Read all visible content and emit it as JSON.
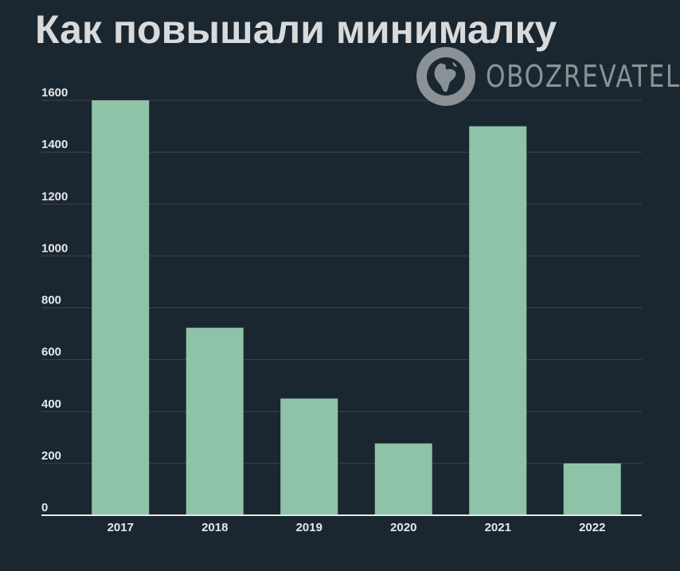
{
  "title": "Как повышали минималку",
  "logo": {
    "text": "OBOZREVATEL",
    "icon": "globe-icon",
    "color": "#8b9296"
  },
  "colors": {
    "background": "#1b2730",
    "bar": "#8fc3a8",
    "grid": "#3a464f",
    "axis": "#e6e8ea",
    "text": "#e6e8ea",
    "title": "#d9dadb"
  },
  "chart_data": {
    "type": "bar",
    "categories": [
      "2017",
      "2018",
      "2019",
      "2020",
      "2021",
      "2022"
    ],
    "values": [
      1600,
      723,
      450,
      277,
      1500,
      200
    ],
    "yticks": [
      0,
      200,
      400,
      600,
      800,
      1000,
      1200,
      1400,
      1600
    ],
    "ylim": [
      0,
      1600
    ],
    "grid": true,
    "legend": "none",
    "xlabel": "",
    "ylabel": ""
  }
}
